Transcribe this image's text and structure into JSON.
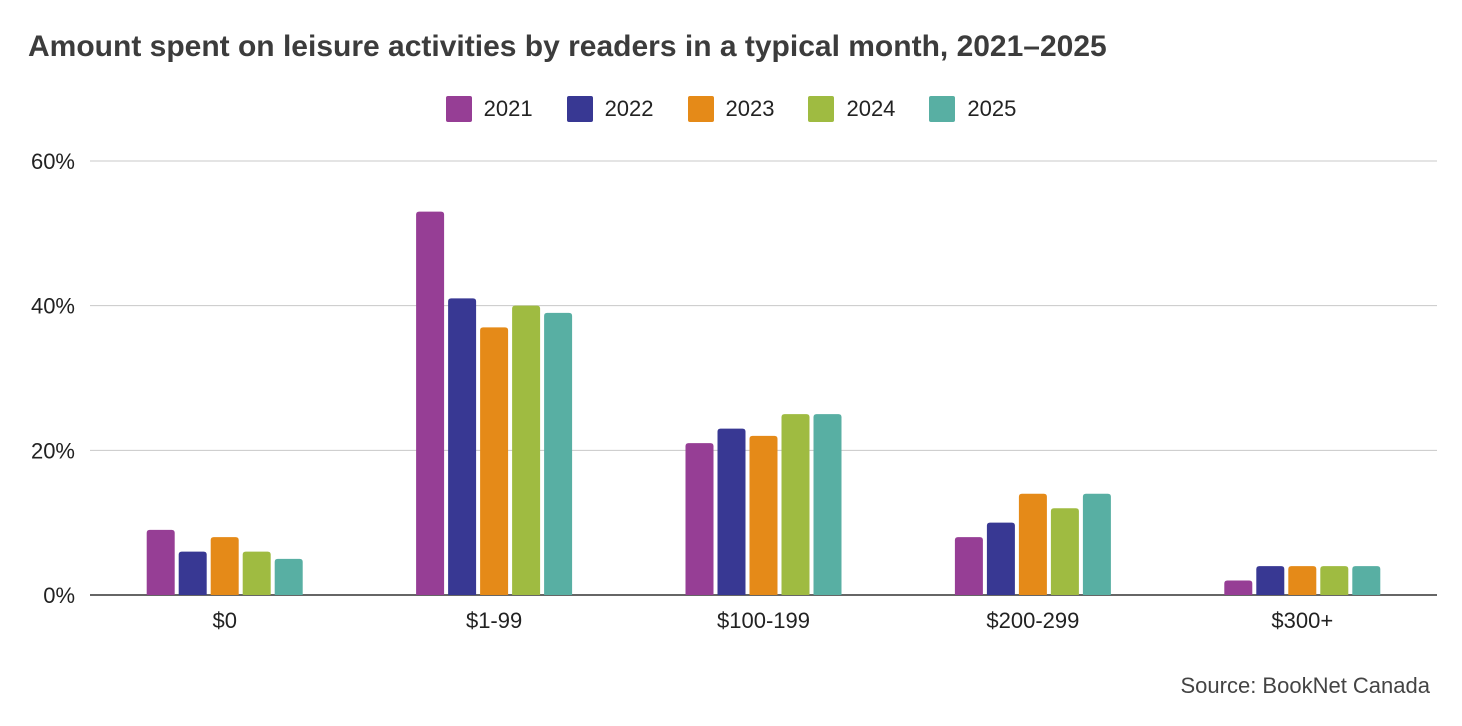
{
  "chart_data": {
    "type": "bar",
    "title": "Amount spent on leisure activities by readers in a typical month, 2021–2025",
    "xlabel": "",
    "ylabel": "",
    "categories": [
      "$0",
      "$1-99",
      "$100-199",
      "$200-299",
      "$300+"
    ],
    "series": [
      {
        "name": "2021",
        "color": "#963e95",
        "values": [
          9,
          53,
          21,
          8,
          2
        ]
      },
      {
        "name": "2022",
        "color": "#383893",
        "values": [
          6,
          41,
          23,
          10,
          4
        ]
      },
      {
        "name": "2023",
        "color": "#e58a18",
        "values": [
          8,
          37,
          22,
          14,
          4
        ]
      },
      {
        "name": "2024",
        "color": "#9fbb41",
        "values": [
          6,
          40,
          25,
          12,
          4
        ]
      },
      {
        "name": "2025",
        "color": "#58afa3",
        "values": [
          5,
          39,
          25,
          14,
          4
        ]
      }
    ],
    "ylim": [
      0,
      60
    ],
    "yticks": [
      0,
      20,
      40,
      60
    ],
    "ytick_labels": [
      "0%",
      "20%",
      "40%",
      "60%"
    ],
    "grid": true,
    "legend": "top-center",
    "source": "Source: BookNet Canada"
  }
}
